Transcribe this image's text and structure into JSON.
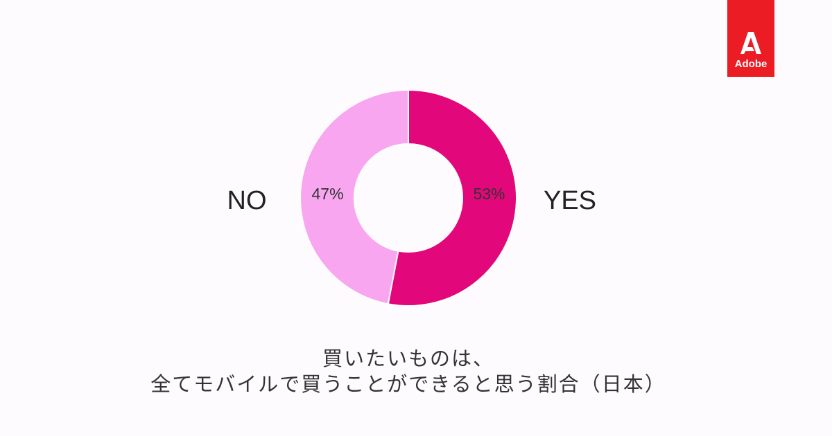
{
  "logo_text": "Adobe",
  "chart_data": {
    "type": "donut",
    "title": [
      "買いたいものは、",
      "全てモバイルで買うことができると思う割合（日本）"
    ],
    "categories": [
      "YES",
      "NO"
    ],
    "values": [
      53,
      47
    ],
    "value_labels": [
      "53%",
      "47%"
    ],
    "colors": [
      "#e2077a",
      "#f9a6f0"
    ]
  }
}
